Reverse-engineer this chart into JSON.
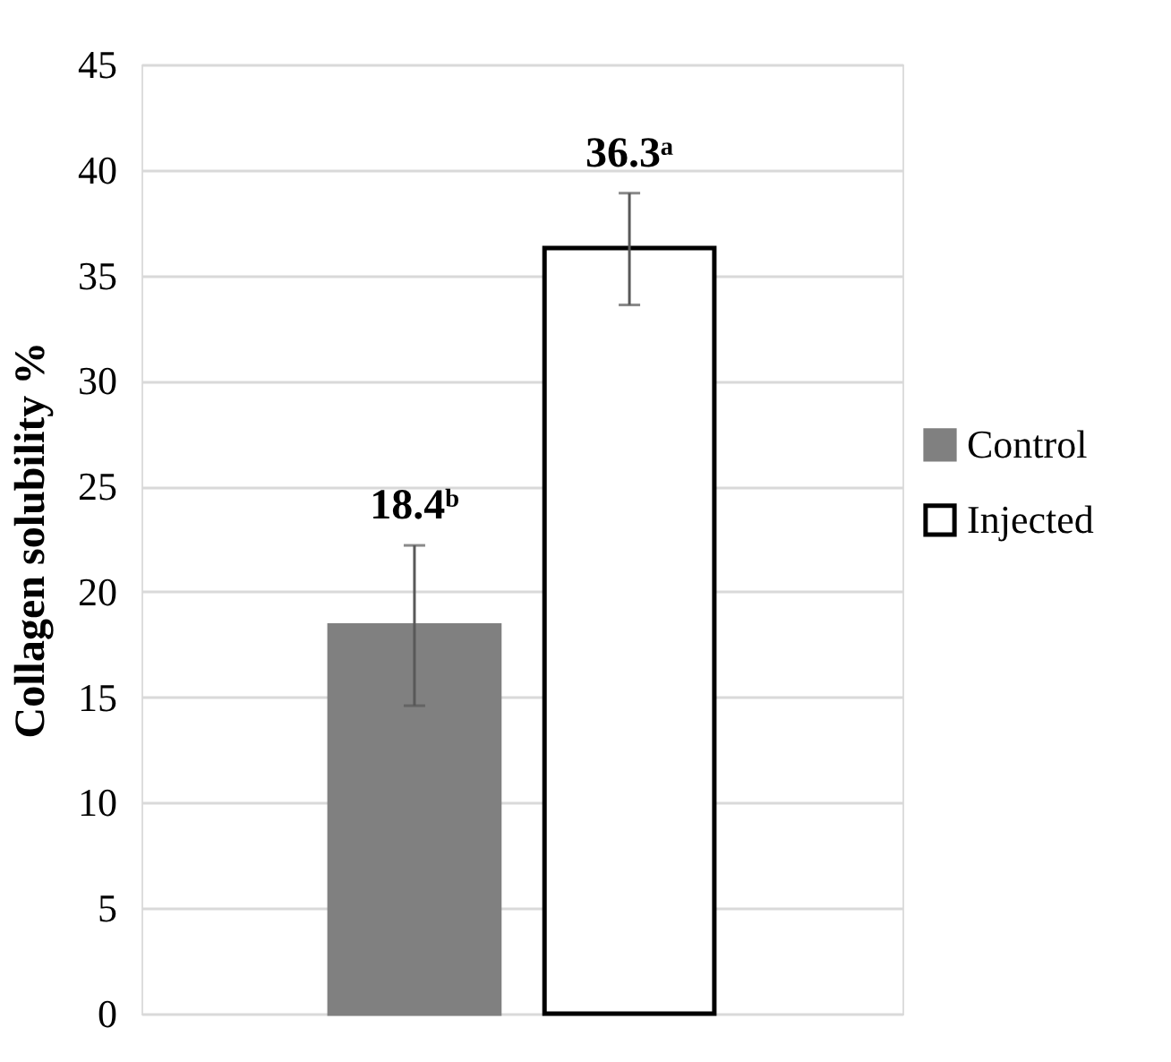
{
  "chart_data": {
    "type": "bar",
    "ylabel": "Collagen solubility %",
    "categories": [
      null
    ],
    "series": [
      {
        "name": "Control",
        "color": "#808080",
        "values": [
          18.4
        ],
        "errors": [
          [
            14.6,
            22.2
          ]
        ],
        "value_labels": [
          "18.4ᵇ"
        ]
      },
      {
        "name": "Injected",
        "color": "#ffffff",
        "values": [
          36.3
        ],
        "errors": [
          [
            33.6,
            38.9
          ]
        ],
        "value_labels": [
          "36.3ᵃ"
        ]
      }
    ],
    "ylim": [
      0,
      45
    ],
    "yticks": [
      0,
      5,
      10,
      15,
      20,
      25,
      30,
      35,
      40,
      45
    ],
    "grid": "y",
    "legend": "right"
  }
}
